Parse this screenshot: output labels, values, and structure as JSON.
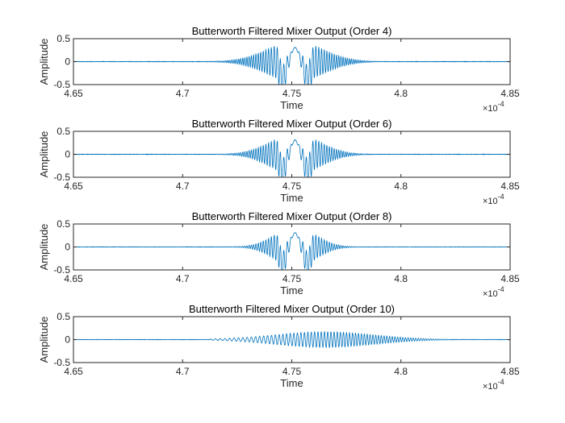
{
  "chart_data": [
    {
      "type": "line",
      "title": "Butterworth Filtered Mixer Output (Order 4)",
      "xlabel": "Time",
      "ylabel": "Amplitude",
      "xlim": [
        4.65,
        4.85
      ],
      "x_exponent_label": "×10^{-4}",
      "ylim": [
        -0.5,
        0.5
      ],
      "xticks": [
        "4.65",
        "4.7",
        "4.75",
        "4.8",
        "4.85"
      ],
      "yticks": [
        "0.5",
        "0",
        "-0.5"
      ],
      "color": "#0072bd",
      "signal": {
        "description_values": "amplitude-modulated oscillation",
        "center": 4.7515,
        "envelope_peak": 0.45,
        "envelope_width": 0.018,
        "carrier_cycles_per_unit": 520,
        "center_lobe_amplitude": 0.31
      },
      "noise_level": 0.004
    },
    {
      "type": "line",
      "title": "Butterworth Filtered Mixer Output (Order 6)",
      "xlabel": "Time",
      "ylabel": "Amplitude",
      "xlim": [
        4.65,
        4.85
      ],
      "x_exponent_label": "×10^{-4}",
      "ylim": [
        -0.5,
        0.5
      ],
      "xticks": [
        "4.65",
        "4.7",
        "4.75",
        "4.8",
        "4.85"
      ],
      "yticks": [
        "0.5",
        "0",
        "-0.5"
      ],
      "color": "#0072bd",
      "signal": {
        "center": 4.7515,
        "envelope_peak": 0.45,
        "envelope_width": 0.016,
        "carrier_cycles_per_unit": 520,
        "center_lobe_amplitude": 0.31
      },
      "noise_level": 0.004
    },
    {
      "type": "line",
      "title": "Butterworth Filtered Mixer Output (Order 8)",
      "xlabel": "Time",
      "ylabel": "Amplitude",
      "xlim": [
        4.65,
        4.85
      ],
      "x_exponent_label": "×10^{-4}",
      "ylim": [
        -0.5,
        0.5
      ],
      "xticks": [
        "4.65",
        "4.7",
        "4.75",
        "4.8",
        "4.85"
      ],
      "yticks": [
        "0.5",
        "0",
        "-0.5"
      ],
      "color": "#0072bd",
      "signal": {
        "center": 4.7515,
        "envelope_peak": 0.45,
        "envelope_width": 0.013,
        "carrier_cycles_per_unit": 520,
        "center_lobe_amplitude": 0.31
      },
      "noise_level": 0.003
    },
    {
      "type": "line",
      "title": "Butterworth Filtered Mixer Output (Order 10)",
      "xlabel": "Time",
      "ylabel": "Amplitude",
      "xlim": [
        4.65,
        4.85
      ],
      "x_exponent_label": "×10^{-4}",
      "ylim": [
        -0.5,
        0.5
      ],
      "xticks": [
        "4.65",
        "4.7",
        "4.75",
        "4.8",
        "4.85"
      ],
      "yticks": [
        "0.5",
        "0",
        "-0.5"
      ],
      "color": "#0072bd",
      "signal": {
        "center": 4.765,
        "envelope_peak": 0.17,
        "envelope_width": 0.032,
        "start": 4.715,
        "carrier_cycles_per_unit": 560,
        "center_lobe_amplitude": 0.0
      },
      "noise_level": 0.003
    }
  ]
}
